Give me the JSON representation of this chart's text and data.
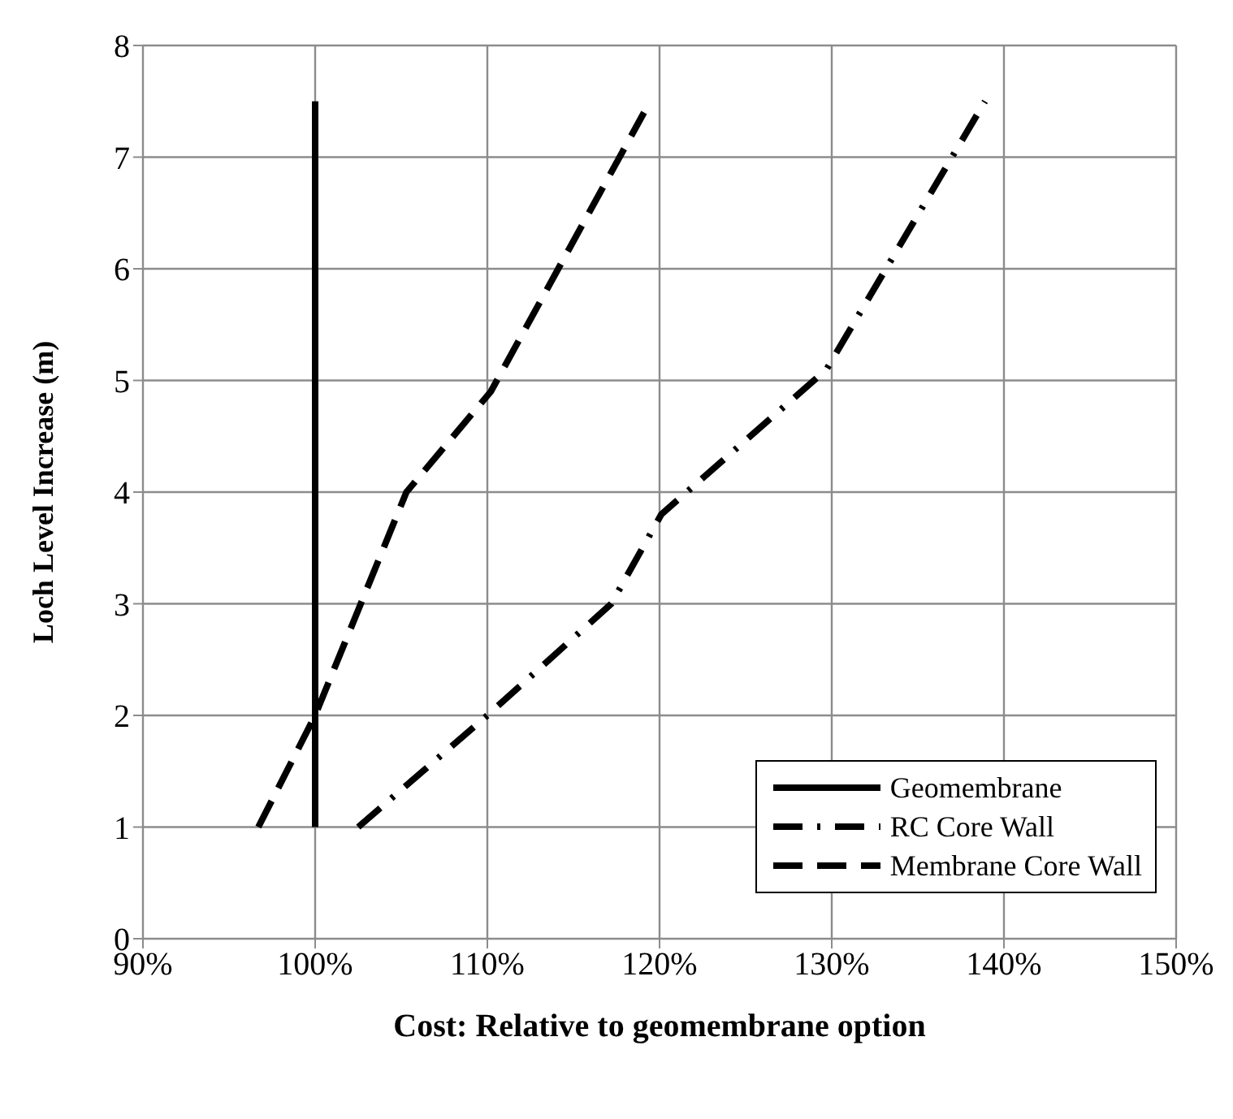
{
  "chart_data": {
    "type": "line",
    "xlabel": "Cost: Relative to geomembrane option",
    "ylabel": "Loch Level Increase (m)",
    "xlim": [
      90,
      150
    ],
    "xticks": [
      {
        "value": 90,
        "label": "90%"
      },
      {
        "value": 100,
        "label": "100%"
      },
      {
        "value": 110,
        "label": "110%"
      },
      {
        "value": 120,
        "label": "120%"
      },
      {
        "value": 130,
        "label": "130%"
      },
      {
        "value": 140,
        "label": "140%"
      },
      {
        "value": 150,
        "label": "150%"
      }
    ],
    "ylim": [
      0,
      8
    ],
    "yticks": [
      0,
      1,
      2,
      3,
      4,
      5,
      6,
      7,
      8
    ],
    "grid": true,
    "legend": "bottom right",
    "marker": "none",
    "series": [
      {
        "name": "Geomembrane",
        "color": "#000000",
        "line_style": "solid",
        "x": [
          100,
          100
        ],
        "values": [
          1,
          7.5
        ]
      },
      {
        "name": "RC Core Wall",
        "color": "#000000",
        "line_style": "dashdot",
        "x": [
          102.5,
          110,
          117.2,
          120.1,
          129.7,
          138.9
        ],
        "values": [
          1,
          2,
          3,
          3.8,
          5.1,
          7.5
        ]
      },
      {
        "name": "Membrane Core Wall",
        "color": "#000000",
        "line_style": "dashed",
        "x": [
          96.7,
          100,
          105.3,
          110.2,
          119.1
        ],
        "values": [
          1,
          2,
          4,
          4.9,
          7.4
        ]
      }
    ]
  }
}
